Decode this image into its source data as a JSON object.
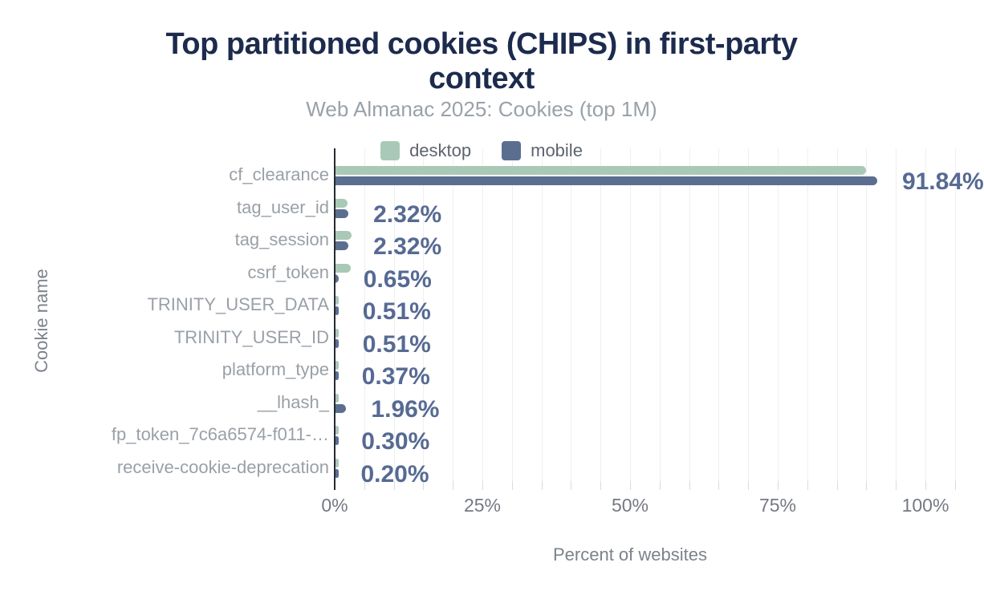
{
  "header": {
    "title_line1": "Top partitioned cookies (CHIPS) in first-party",
    "title_line2": "context",
    "subtitle": "Web Almanac 2025: Cookies (top 1M)"
  },
  "legend": [
    {
      "label": "desktop",
      "color": "#a9c9b6"
    },
    {
      "label": "mobile",
      "color": "#5b6e90"
    }
  ],
  "chart_data": {
    "type": "bar",
    "orientation": "horizontal",
    "title": "Top partitioned cookies (CHIPS) in first-party context",
    "subtitle": "Web Almanac 2025: Cookies (top 1M)",
    "xlabel": "Percent of websites",
    "ylabel": "Cookie name",
    "categories": [
      "cf_clearance",
      "tag_user_id",
      "tag_session",
      "csrf_token",
      "TRINITY_USER_DATA",
      "TRINITY_USER_ID",
      "platform_type",
      "__lhash_",
      "fp_token_7c6a6574-f011-…",
      "receive-cookie-deprecation"
    ],
    "series": [
      {
        "name": "desktop",
        "color": "#a9c9b6",
        "values": [
          89.9,
          2.2,
          2.9,
          2.7,
          0.5,
          0.5,
          0.4,
          0.4,
          0.35,
          0.25
        ]
      },
      {
        "name": "mobile",
        "color": "#5b6e90",
        "values": [
          91.84,
          2.32,
          2.32,
          0.65,
          0.51,
          0.51,
          0.37,
          1.96,
          0.3,
          0.2
        ]
      }
    ],
    "data_labels": [
      "91.84%",
      "2.32%",
      "2.32%",
      "0.65%",
      "0.51%",
      "0.51%",
      "0.37%",
      "1.96%",
      "0.30%",
      "0.20%"
    ],
    "x_ticks": [
      {
        "pct": 0,
        "label": "0%"
      },
      {
        "pct": 25,
        "label": "25%"
      },
      {
        "pct": 50,
        "label": "50%"
      },
      {
        "pct": 75,
        "label": "75%"
      },
      {
        "pct": 100,
        "label": "100%"
      }
    ],
    "xlim": [
      0,
      105
    ],
    "grid": true,
    "grid_step_pct": 5,
    "legend_position": "top"
  },
  "colors": {
    "title": "#1c2b4d",
    "subtitle": "#9aa1a9",
    "desktop_bar": "#a9c9b6",
    "mobile_bar": "#5b6e90",
    "value_label": "#566a93",
    "category_label": "#9aa0a7",
    "gridline": "#efefef",
    "axis_line": "#252a32",
    "tick_label": "#747982"
  }
}
